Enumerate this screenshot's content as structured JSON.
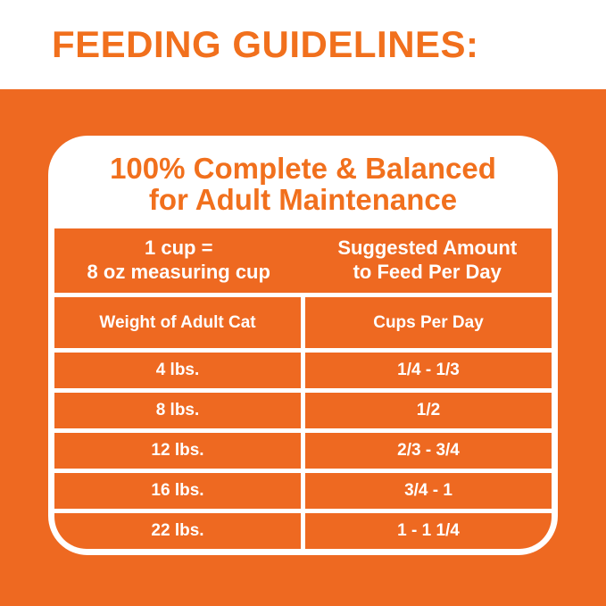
{
  "colors": {
    "orange_background": "#ee6921",
    "orange_text": "#f1701d",
    "white": "#ffffff"
  },
  "header": {
    "title": "FEEDING GUIDELINES:"
  },
  "card": {
    "title_line1": "100% Complete & Balanced",
    "title_line2": "for Adult Maintenance",
    "info_band": {
      "left_line1": "1 cup =",
      "left_line2": "8 oz measuring cup",
      "right_line1": "Suggested Amount",
      "right_line2": "to Feed Per Day"
    },
    "table": {
      "columns": {
        "weight": "Weight of Adult Cat",
        "cups": "Cups Per Day"
      },
      "rows": [
        {
          "weight": "4 lbs.",
          "cups": "1/4 - 1/3"
        },
        {
          "weight": "8 lbs.",
          "cups": "1/2"
        },
        {
          "weight": "12 lbs.",
          "cups": "2/3 - 3/4"
        },
        {
          "weight": "16 lbs.",
          "cups": "3/4 - 1"
        },
        {
          "weight": "22 lbs.",
          "cups": "1 - 1 1/4"
        }
      ]
    }
  },
  "chart_data": {
    "type": "table",
    "title": "FEEDING GUIDELINES: 100% Complete & Balanced for Adult Maintenance",
    "note": "1 cup = 8 oz measuring cup; Suggested Amount to Feed Per Day",
    "columns": [
      "Weight of Adult Cat",
      "Cups Per Day"
    ],
    "rows": [
      [
        "4 lbs.",
        "1/4 - 1/3"
      ],
      [
        "8 lbs.",
        "1/2"
      ],
      [
        "12 lbs.",
        "2/3 - 3/4"
      ],
      [
        "16 lbs.",
        "3/4 - 1"
      ],
      [
        "22 lbs.",
        "1 - 1 1/4"
      ]
    ]
  }
}
